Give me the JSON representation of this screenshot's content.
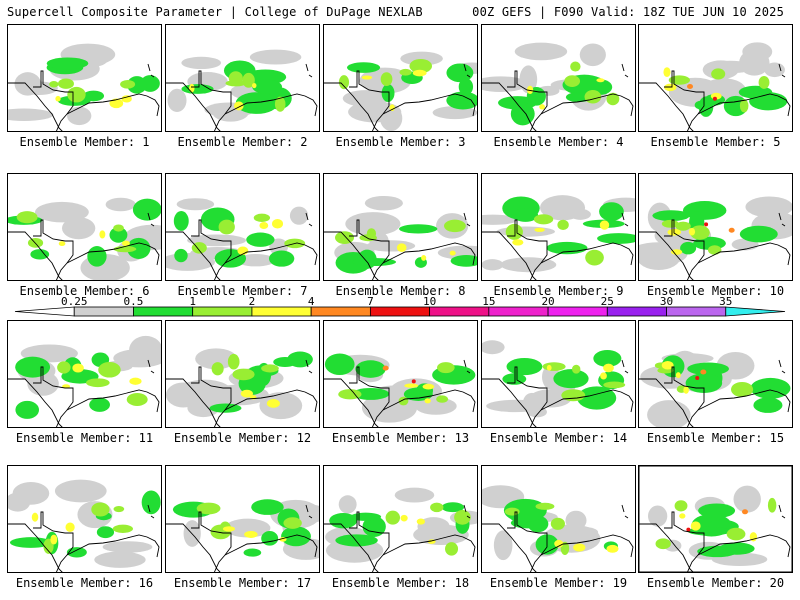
{
  "header": {
    "left": "Supercell Composite Parameter | College of DuPage NEXLAB",
    "right": "00Z GEFS | F090 Valid: 18Z TUE JUN 10 2025"
  },
  "legend": {
    "levels": [
      {
        "label": "0.25",
        "color": "#d0d0d0"
      },
      {
        "label": "0.5",
        "color": "#22dd33"
      },
      {
        "label": "1",
        "color": "#99ee33"
      },
      {
        "label": "2",
        "color": "#ffff33"
      },
      {
        "label": "4",
        "color": "#ff8822"
      },
      {
        "label": "7",
        "color": "#ee1111"
      },
      {
        "label": "10",
        "color": "#ee1188"
      },
      {
        "label": "15",
        "color": "#ee22cc"
      },
      {
        "label": "20",
        "color": "#ee22ee"
      },
      {
        "label": "25",
        "color": "#9922ee"
      },
      {
        "label": "30",
        "color": "#bb66ee"
      },
      {
        "label": "35",
        "color": "#33eeee"
      }
    ]
  },
  "members": [
    {
      "label": "Ensemble Member: 1"
    },
    {
      "label": "Ensemble Member: 2"
    },
    {
      "label": "Ensemble Member: 3"
    },
    {
      "label": "Ensemble Member: 4"
    },
    {
      "label": "Ensemble Member: 5"
    },
    {
      "label": "Ensemble Member: 6"
    },
    {
      "label": "Ensemble Member: 7"
    },
    {
      "label": "Ensemble Member: 8"
    },
    {
      "label": "Ensemble Member: 9"
    },
    {
      "label": "Ensemble Member: 10"
    },
    {
      "label": "Ensemble Member: 11"
    },
    {
      "label": "Ensemble Member: 12"
    },
    {
      "label": "Ensemble Member: 13"
    },
    {
      "label": "Ensemble Member: 14"
    },
    {
      "label": "Ensemble Member: 15"
    },
    {
      "label": "Ensemble Member: 16"
    },
    {
      "label": "Ensemble Member: 17"
    },
    {
      "label": "Ensemble Member: 18"
    },
    {
      "label": "Ensemble Member: 19"
    },
    {
      "label": "Ensemble Member: 20"
    }
  ]
}
